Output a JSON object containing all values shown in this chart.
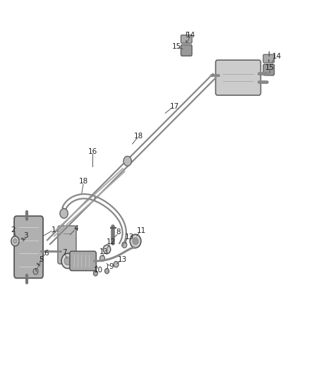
{
  "background_color": "#ffffff",
  "fig_width": 4.38,
  "fig_height": 5.33,
  "dpi": 100,
  "line_color": "#555555",
  "text_color": "#222222"
}
